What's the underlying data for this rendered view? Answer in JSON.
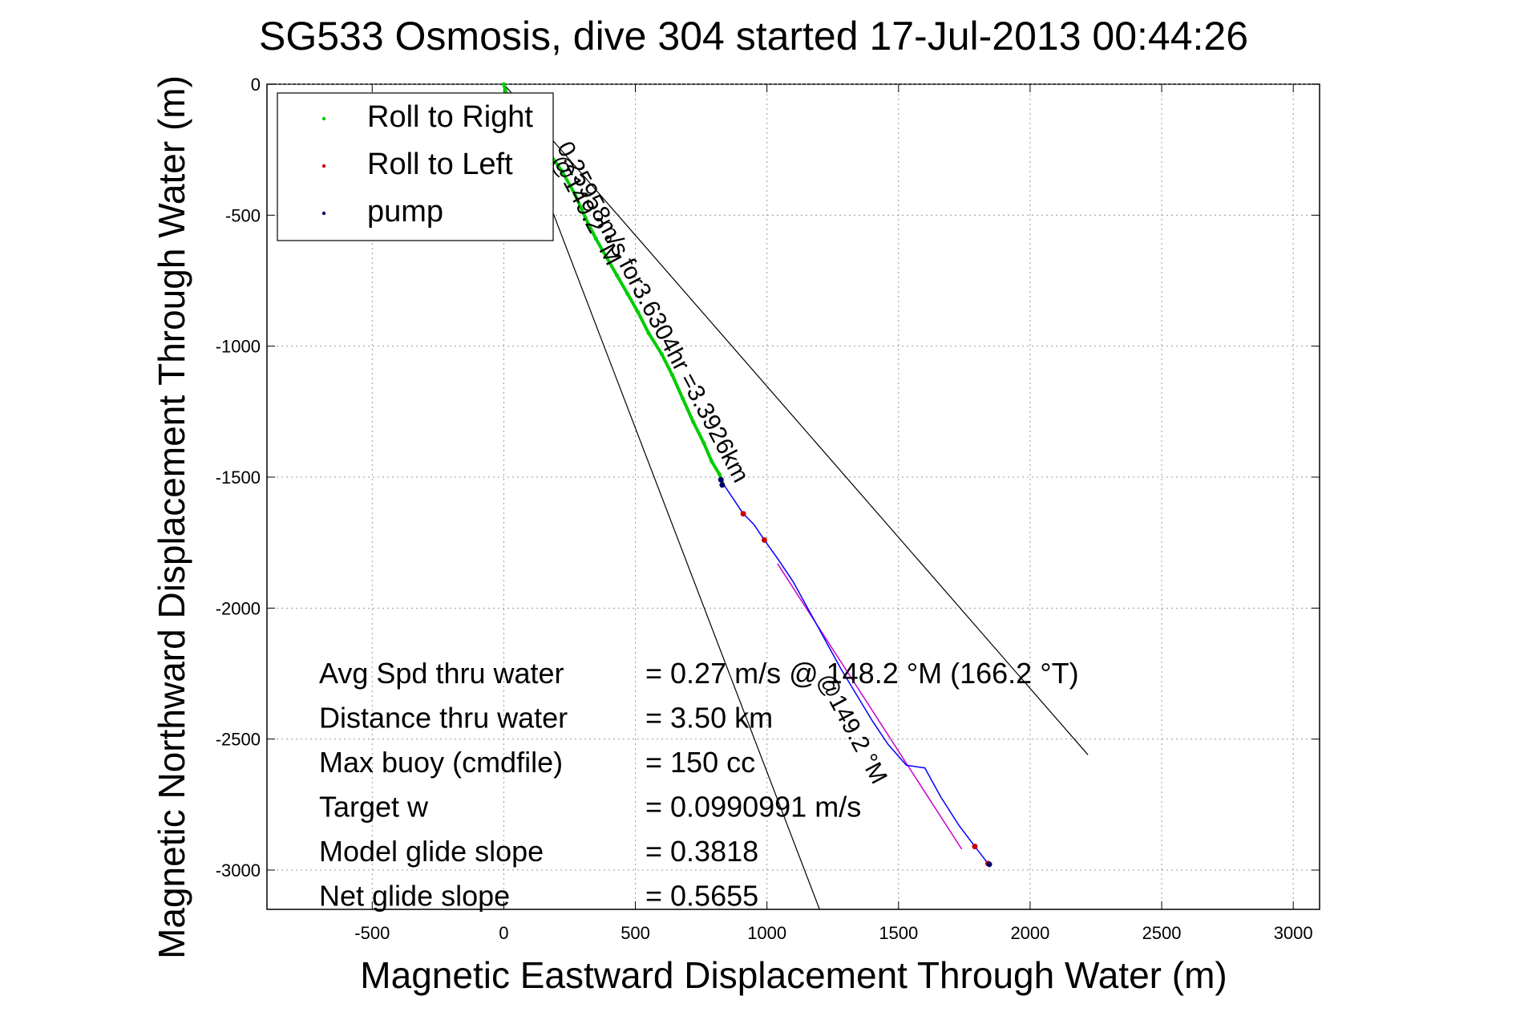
{
  "chart_data": {
    "type": "line",
    "title": "SG533 Osmosis, dive 304 started 17-Jul-2013 00:44:26",
    "xlabel": "Magnetic Eastward Displacement Through Water (m)",
    "ylabel": "Magnetic Northward Displacement Through Water (m)",
    "xlim": [
      -900,
      3100
    ],
    "ylim": [
      -3150,
      0
    ],
    "xticks": [
      -500,
      0,
      500,
      1000,
      1500,
      2000,
      2500,
      3000
    ],
    "yticks": [
      0,
      -500,
      -1000,
      -1500,
      -2000,
      -2500,
      -3000
    ],
    "xtick_labels": [
      "-500",
      "0",
      "500",
      "1000",
      "1500",
      "2000",
      "2500",
      "3000"
    ],
    "ytick_labels": [
      "0",
      "-500",
      "-1000",
      "-1500",
      "-2000",
      "-2500",
      "-3000"
    ],
    "grid": true,
    "legend_position": "top-left",
    "legend": [
      {
        "label": "Roll to Right",
        "color": "#00cc00"
      },
      {
        "label": "Roll to Left",
        "color": "#cc0000"
      },
      {
        "label": "pump",
        "color": "#000066"
      }
    ],
    "series": [
      {
        "name": "Roll to Right",
        "color": "#00cc00",
        "points": [
          [
            0,
            0
          ],
          [
            5,
            -20
          ],
          [
            15,
            -50
          ],
          [
            40,
            -90
          ],
          [
            80,
            -140
          ],
          [
            120,
            -190
          ],
          [
            170,
            -260
          ],
          [
            220,
            -330
          ],
          [
            270,
            -420
          ],
          [
            310,
            -510
          ],
          [
            350,
            -590
          ],
          [
            390,
            -660
          ],
          [
            430,
            -730
          ],
          [
            470,
            -800
          ],
          [
            510,
            -870
          ],
          [
            550,
            -950
          ],
          [
            600,
            -1030
          ],
          [
            640,
            -1110
          ],
          [
            680,
            -1200
          ],
          [
            720,
            -1290
          ],
          [
            760,
            -1370
          ],
          [
            790,
            -1440
          ],
          [
            820,
            -1490
          ],
          [
            830,
            -1520
          ]
        ]
      },
      {
        "name": "Roll to Left",
        "color": "#cc0000",
        "points": [
          [
            910,
            -1640
          ],
          [
            990,
            -1740
          ],
          [
            1790,
            -2910
          ],
          [
            1840,
            -2975
          ]
        ]
      },
      {
        "name": "pump",
        "color": "#000066",
        "points": [
          [
            825,
            -1510
          ],
          [
            830,
            -1530
          ],
          [
            1845,
            -2978
          ]
        ]
      }
    ],
    "track": {
      "color": "#0000ff",
      "points": [
        [
          830,
          -1520
        ],
        [
          870,
          -1580
        ],
        [
          910,
          -1640
        ],
        [
          950,
          -1680
        ],
        [
          990,
          -1740
        ],
        [
          1040,
          -1810
        ],
        [
          1100,
          -1900
        ],
        [
          1160,
          -2010
        ],
        [
          1220,
          -2120
        ],
        [
          1280,
          -2230
        ],
        [
          1340,
          -2330
        ],
        [
          1400,
          -2430
        ],
        [
          1460,
          -2520
        ],
        [
          1530,
          -2600
        ],
        [
          1600,
          -2610
        ],
        [
          1660,
          -2720
        ],
        [
          1730,
          -2830
        ],
        [
          1790,
          -2910
        ],
        [
          1840,
          -2975
        ]
      ]
    },
    "fit_line": {
      "color": "#cc00cc",
      "points": [
        [
          1040,
          -1830
        ],
        [
          1740,
          -2920
        ]
      ]
    },
    "bound_lines": [
      {
        "points": [
          [
            0,
            0
          ],
          [
            1200,
            -3150
          ]
        ],
        "color": "#000000"
      },
      {
        "points": [
          [
            0,
            0
          ],
          [
            2220,
            -2560
          ]
        ],
        "color": "#000000"
      }
    ],
    "annotations": [
      {
        "text": "0.25958m/s for3.6304hr =3.3926km",
        "x": 200,
        "y": -240,
        "angle_deg": 62
      },
      {
        "text": "@149.2 °M",
        "x": 180,
        "y": -290,
        "angle_deg": 62
      },
      {
        "text": "@149.2 °M",
        "x": 1190,
        "y": -2270,
        "angle_deg": 62
      }
    ],
    "stats": [
      {
        "label": "Avg Spd thru water",
        "value": "=  0.27 m/s @ 148.2 °M (166.2 °T)"
      },
      {
        "label": "Distance thru water",
        "value": "=  3.50 km"
      },
      {
        "label": "Max buoy (cmdfile)",
        "value": "= 150 cc"
      },
      {
        "label": "Target w",
        "value": "= 0.0990991 m/s"
      },
      {
        "label": "Model glide slope",
        "value": "= 0.3818"
      },
      {
        "label": "Net glide slope",
        "value": "= 0.5655"
      }
    ]
  }
}
